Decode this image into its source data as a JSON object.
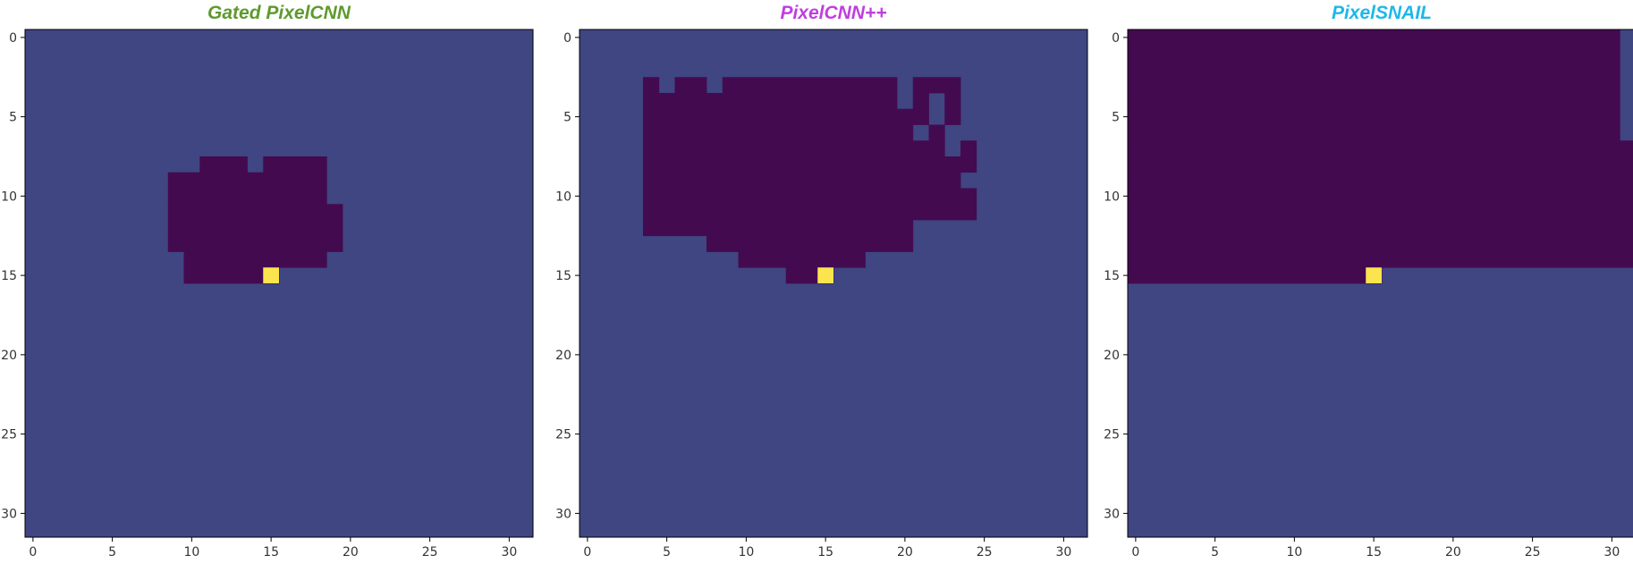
{
  "chart_data": [
    {
      "type": "heatmap",
      "title": "Gated PixelCNN",
      "title_color": "#5e9a2e",
      "grid_size": 32,
      "xlim": [
        -0.5,
        31.5
      ],
      "ylim": [
        31.5,
        -0.5
      ],
      "xticks": [
        "0",
        "5",
        "10",
        "15",
        "20",
        "25",
        "30"
      ],
      "yticks": [
        "0",
        "5",
        "10",
        "15",
        "20",
        "25",
        "30"
      ],
      "background_color": "#3f4682",
      "region_color": "#440a4f",
      "highlight_color": "#fbe44e",
      "highlight_pixel": [
        15,
        15
      ],
      "region_runs": [
        {
          "row": 8,
          "x_from": 11,
          "x_to": 13
        },
        {
          "row": 8,
          "x_from": 15,
          "x_to": 18
        },
        {
          "row": 9,
          "x_from": 9,
          "x_to": 18
        },
        {
          "row": 10,
          "x_from": 9,
          "x_to": 18
        },
        {
          "row": 11,
          "x_from": 9,
          "x_to": 19
        },
        {
          "row": 12,
          "x_from": 9,
          "x_to": 19
        },
        {
          "row": 13,
          "x_from": 9,
          "x_to": 19
        },
        {
          "row": 14,
          "x_from": 10,
          "x_to": 18
        },
        {
          "row": 15,
          "x_from": 10,
          "x_to": 15
        }
      ]
    },
    {
      "type": "heatmap",
      "title": "PixelCNN++",
      "title_color": "#c03ee0",
      "grid_size": 32,
      "xlim": [
        -0.5,
        31.5
      ],
      "ylim": [
        31.5,
        -0.5
      ],
      "xticks": [
        "0",
        "5",
        "10",
        "15",
        "20",
        "25",
        "30"
      ],
      "yticks": [
        "0",
        "5",
        "10",
        "15",
        "20",
        "25",
        "30"
      ],
      "background_color": "#3f4682",
      "region_color": "#440a4f",
      "highlight_color": "#fbe44e",
      "highlight_pixel": [
        15,
        15
      ],
      "region_runs": [
        {
          "row": 3,
          "x_from": 4,
          "x_to": 4
        },
        {
          "row": 3,
          "x_from": 6,
          "x_to": 7
        },
        {
          "row": 3,
          "x_from": 9,
          "x_to": 19
        },
        {
          "row": 3,
          "x_from": 21,
          "x_to": 23
        },
        {
          "row": 4,
          "x_from": 4,
          "x_to": 19
        },
        {
          "row": 4,
          "x_from": 21,
          "x_to": 21
        },
        {
          "row": 4,
          "x_from": 23,
          "x_to": 23
        },
        {
          "row": 5,
          "x_from": 4,
          "x_to": 21
        },
        {
          "row": 5,
          "x_from": 23,
          "x_to": 23
        },
        {
          "row": 6,
          "x_from": 4,
          "x_to": 20
        },
        {
          "row": 6,
          "x_from": 22,
          "x_to": 22
        },
        {
          "row": 7,
          "x_from": 4,
          "x_to": 22
        },
        {
          "row": 7,
          "x_from": 24,
          "x_to": 24
        },
        {
          "row": 8,
          "x_from": 4,
          "x_to": 24
        },
        {
          "row": 9,
          "x_from": 4,
          "x_to": 23
        },
        {
          "row": 10,
          "x_from": 4,
          "x_to": 24
        },
        {
          "row": 11,
          "x_from": 4,
          "x_to": 24
        },
        {
          "row": 12,
          "x_from": 4,
          "x_to": 20
        },
        {
          "row": 13,
          "x_from": 8,
          "x_to": 20
        },
        {
          "row": 14,
          "x_from": 10,
          "x_to": 17
        },
        {
          "row": 15,
          "x_from": 13,
          "x_to": 15
        }
      ]
    },
    {
      "type": "heatmap",
      "title": "PixelSNAIL",
      "title_color": "#1db8e8",
      "grid_size": 32,
      "xlim": [
        -0.5,
        31.5
      ],
      "ylim": [
        31.5,
        -0.5
      ],
      "xticks": [
        "0",
        "5",
        "10",
        "15",
        "20",
        "25",
        "30"
      ],
      "yticks": [
        "0",
        "5",
        "10",
        "15",
        "20",
        "25",
        "30"
      ],
      "background_color": "#3f4682",
      "region_color": "#440a4f",
      "highlight_color": "#fbe44e",
      "highlight_pixel": [
        15,
        15
      ],
      "region_runs": [
        {
          "row": 0,
          "x_from": 0,
          "x_to": 30
        },
        {
          "row": 1,
          "x_from": 0,
          "x_to": 30
        },
        {
          "row": 2,
          "x_from": 0,
          "x_to": 30
        },
        {
          "row": 3,
          "x_from": 0,
          "x_to": 30
        },
        {
          "row": 4,
          "x_from": 0,
          "x_to": 30
        },
        {
          "row": 5,
          "x_from": 0,
          "x_to": 30
        },
        {
          "row": 6,
          "x_from": 0,
          "x_to": 30
        },
        {
          "row": 7,
          "x_from": 0,
          "x_to": 31
        },
        {
          "row": 8,
          "x_from": 0,
          "x_to": 31
        },
        {
          "row": 9,
          "x_from": 0,
          "x_to": 31
        },
        {
          "row": 10,
          "x_from": 0,
          "x_to": 31
        },
        {
          "row": 11,
          "x_from": 0,
          "x_to": 31
        },
        {
          "row": 12,
          "x_from": 0,
          "x_to": 31
        },
        {
          "row": 13,
          "x_from": 0,
          "x_to": 31
        },
        {
          "row": 14,
          "x_from": 0,
          "x_to": 31
        },
        {
          "row": 15,
          "x_from": 0,
          "x_to": 15
        }
      ]
    }
  ]
}
